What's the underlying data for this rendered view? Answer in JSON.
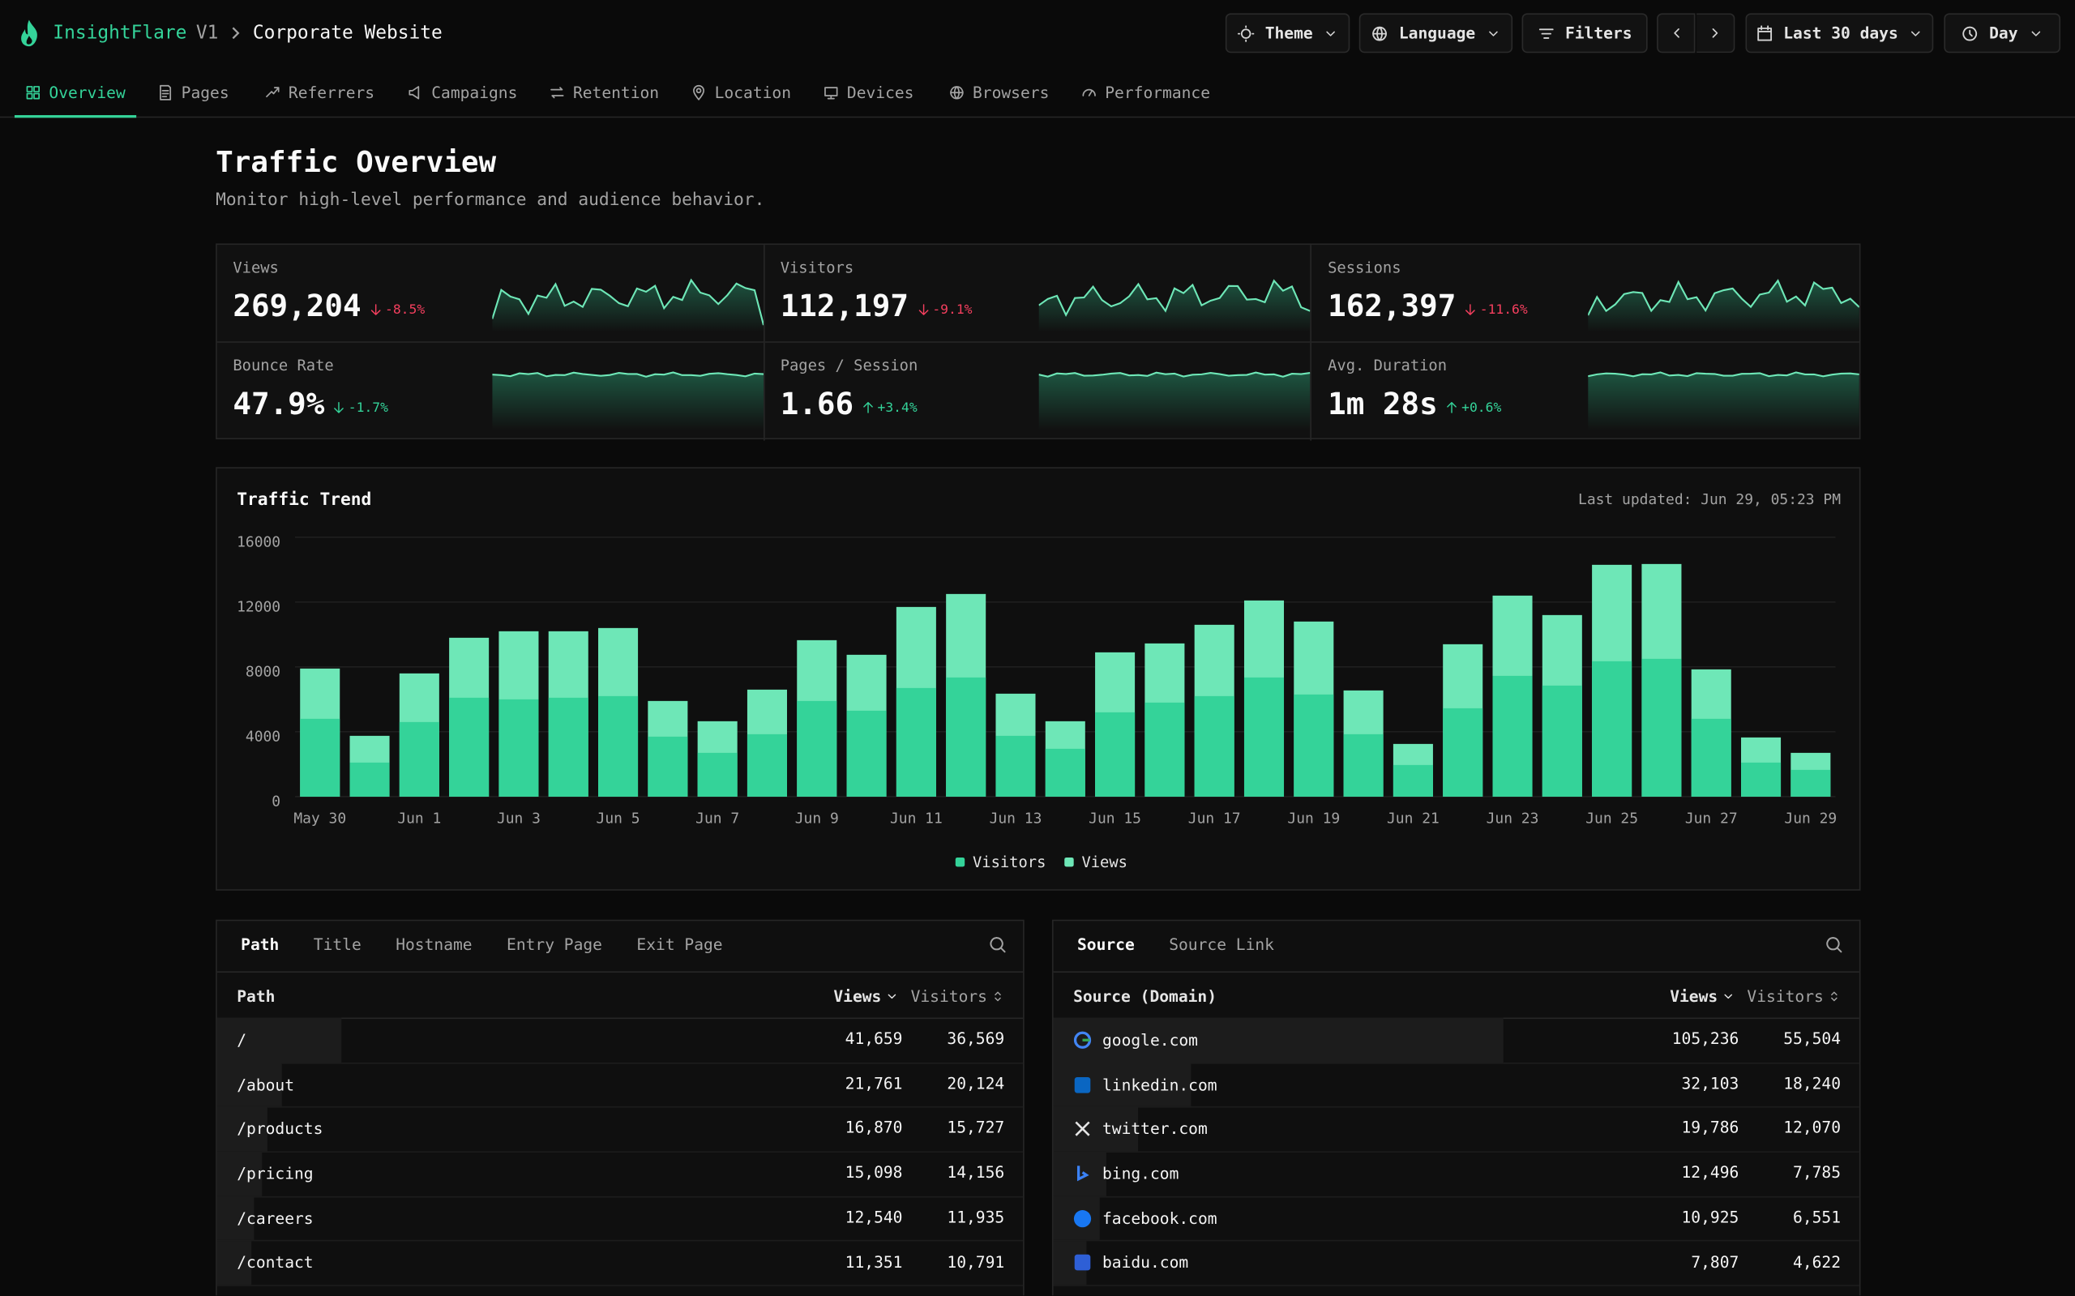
{
  "header": {
    "brand": "InsightFlare",
    "version": "V1",
    "site": "Corporate Website",
    "buttons": [
      "Theme",
      "Language",
      "Filters",
      "Last 30 days",
      "Day"
    ]
  },
  "nav": [
    "Overview",
    "Pages",
    "Referrers",
    "Campaigns",
    "Retention",
    "Location",
    "Devices",
    "Browsers",
    "Performance"
  ],
  "page": {
    "title": "Traffic Overview",
    "subtitle": "Monitor high-level performance and audience behavior."
  },
  "kpis": [
    {
      "label": "Views",
      "value": "269,204",
      "change": "-8.5%",
      "color": "#f43f5e"
    },
    {
      "label": "Visitors",
      "value": "112,197",
      "change": "-9.1%",
      "color": "#f43f5e"
    },
    {
      "label": "Sessions",
      "value": "162,397",
      "change": "-11.6%",
      "color": "#f43f5e"
    },
    {
      "label": "Bounce Rate",
      "value": "47.9%",
      "change": "-1.7%",
      "color": "#34d399"
    },
    {
      "label": "Pages / Session",
      "value": "1.66",
      "change": "+3.4%",
      "color": "#34d399"
    },
    {
      "label": "Avg. Duration",
      "value": "1m 28s",
      "change": "+0.6%",
      "color": "#34d399"
    }
  ],
  "chart_data": {
    "type": "bar",
    "title": "Traffic Trend",
    "note": "Last updated: Jun 29, 05:23 PM",
    "categories": [
      "May 30",
      null,
      "Jun 1",
      null,
      "Jun 3",
      null,
      "Jun 5",
      null,
      "Jun 7",
      null,
      "Jun 9",
      null,
      "Jun 11",
      null,
      "Jun 13",
      null,
      "Jun 15",
      null,
      "Jun 17",
      null,
      "Jun 19",
      null,
      "Jun 21",
      null,
      "Jun 23",
      null,
      "Jun 25",
      null,
      "Jun 27",
      null,
      "Jun 29"
    ],
    "series": [
      {
        "name": "Visitors",
        "color": "#34d399",
        "values": [
          4800,
          2100,
          4600,
          6100,
          6000,
          6100,
          6200,
          3700,
          2700,
          3850,
          5900,
          5300,
          6700,
          7350,
          3750,
          2950,
          5200,
          5800,
          6200,
          7350,
          6300,
          3850,
          1950,
          5450,
          7450,
          6850,
          8350,
          8500,
          4800,
          2100,
          1650
        ]
      },
      {
        "name": "Views",
        "color": "#6ee7b7",
        "values": [
          7900,
          3750,
          7600,
          9800,
          10200,
          10200,
          10400,
          5900,
          4650,
          6600,
          9650,
          8750,
          11700,
          12500,
          6350,
          4650,
          8900,
          9450,
          10600,
          12100,
          10800,
          6550,
          3250,
          9400,
          12400,
          11200,
          14300,
          14350,
          7850,
          3650,
          2700
        ]
      }
    ],
    "ylim": [
      0,
      16000
    ],
    "yticks": [
      0,
      4000,
      8000,
      12000,
      16000
    ],
    "grid": true
  },
  "pages_table": {
    "tabs": [
      "Path",
      "Title",
      "Hostname",
      "Entry Page",
      "Exit Page"
    ],
    "columns": [
      "Path",
      "Views",
      "Visitors"
    ],
    "rows": [
      [
        "/",
        "41,659",
        "36,569"
      ],
      [
        "/about",
        "21,761",
        "20,124"
      ],
      [
        "/products",
        "16,870",
        "15,727"
      ],
      [
        "/pricing",
        "15,098",
        "14,156"
      ],
      [
        "/careers",
        "12,540",
        "11,935"
      ],
      [
        "/contact",
        "11,351",
        "10,791"
      ]
    ]
  },
  "sources_table": {
    "tabs": [
      "Source",
      "Source Link"
    ],
    "columns": [
      "Source (Domain)",
      "Views",
      "Visitors"
    ],
    "rows": [
      [
        "google.com",
        "105,236",
        "55,504"
      ],
      [
        "linkedin.com",
        "32,103",
        "18,240"
      ],
      [
        "twitter.com",
        "19,786",
        "12,070"
      ],
      [
        "bing.com",
        "12,496",
        "7,785"
      ],
      [
        "facebook.com",
        "10,925",
        "6,551"
      ],
      [
        "baidu.com",
        "7,807",
        "4,622"
      ]
    ]
  }
}
